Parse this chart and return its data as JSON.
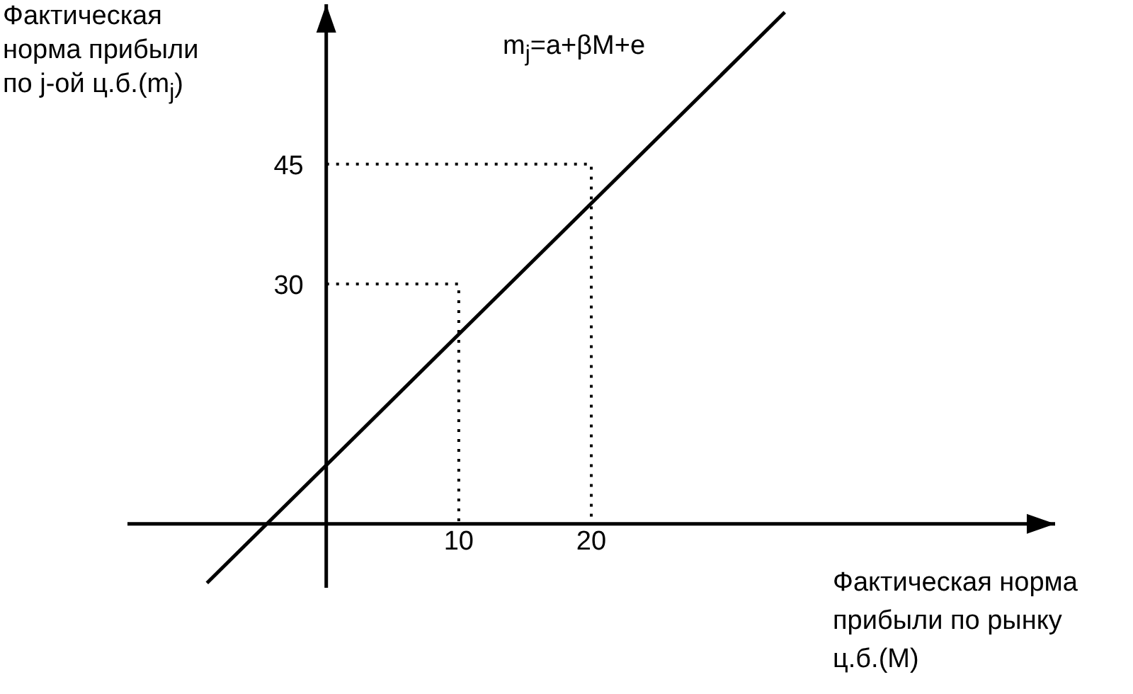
{
  "chart_data": {
    "type": "line",
    "xlabel": "Фактическая норма прибыли по рынку ц.б.(M)",
    "ylabel": "Фактическая норма прибыли по j-ой ц.б.(m$_{j}$)",
    "annotations": [
      "m$_{j}$=a+βM+e"
    ],
    "xlim": [
      -15,
      55
    ],
    "ylim": [
      -8,
      65
    ],
    "xticks": [
      10,
      20
    ],
    "yticks": [
      30,
      45
    ],
    "marker": "none",
    "series": [
      {
        "color": "#000000",
        "line_style": "solid",
        "x": [
          -9,
          34.6
        ],
        "values": [
          -7.4,
          64
        ]
      },
      {
        "color": "#000000",
        "line_style": "dotted",
        "x": [
          0,
          20,
          20
        ],
        "values": [
          45,
          45,
          0
        ]
      },
      {
        "color": "#000000",
        "line_style": "dotted",
        "x": [
          0,
          10,
          10
        ],
        "values": [
          30,
          30,
          0
        ]
      }
    ]
  }
}
